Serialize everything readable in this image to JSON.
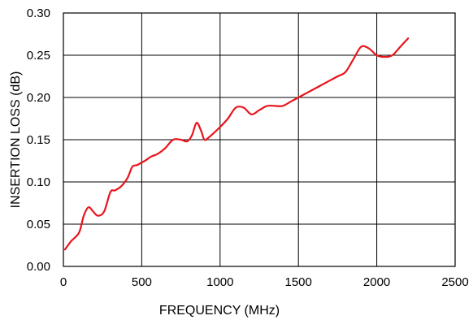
{
  "chart_data": {
    "type": "line",
    "title": "",
    "xlabel": "FREQUENCY (MHz)",
    "ylabel": "INSERTION LOSS (dB)",
    "xlim": [
      0,
      2500
    ],
    "ylim": [
      0.0,
      0.3
    ],
    "x_ticks": [
      0,
      500,
      1000,
      1500,
      2000,
      2500
    ],
    "x_tick_labels": [
      "0",
      "500",
      "1000",
      "1500",
      "2000",
      "2500"
    ],
    "y_ticks": [
      0.0,
      0.05,
      0.1,
      0.15,
      0.2,
      0.25,
      0.3
    ],
    "y_tick_labels": [
      "0.00",
      "0.05",
      "0.10",
      "0.15",
      "0.20",
      "0.25",
      "0.30"
    ],
    "grid": true,
    "legend": "none",
    "series": [
      {
        "color": "#e8141c",
        "x": [
          10,
          50,
          100,
          130,
          160,
          190,
          220,
          260,
          300,
          330,
          370,
          410,
          440,
          470,
          520,
          560,
          600,
          650,
          700,
          750,
          790,
          820,
          850,
          880,
          900,
          930,
          1000,
          1050,
          1100,
          1150,
          1200,
          1250,
          1300,
          1350,
          1400,
          1450,
          1500,
          1550,
          1600,
          1650,
          1700,
          1750,
          1800,
          1850,
          1900,
          1950,
          2000,
          2050,
          2100,
          2150,
          2200
        ],
        "y": [
          0.02,
          0.03,
          0.04,
          0.06,
          0.07,
          0.065,
          0.06,
          0.065,
          0.088,
          0.09,
          0.095,
          0.105,
          0.118,
          0.12,
          0.125,
          0.13,
          0.133,
          0.14,
          0.15,
          0.15,
          0.148,
          0.155,
          0.17,
          0.16,
          0.15,
          0.153,
          0.165,
          0.175,
          0.188,
          0.188,
          0.18,
          0.185,
          0.19,
          0.19,
          0.19,
          0.195,
          0.2,
          0.205,
          0.21,
          0.215,
          0.22,
          0.225,
          0.23,
          0.245,
          0.26,
          0.258,
          0.25,
          0.248,
          0.25,
          0.26,
          0.27
        ]
      }
    ]
  }
}
